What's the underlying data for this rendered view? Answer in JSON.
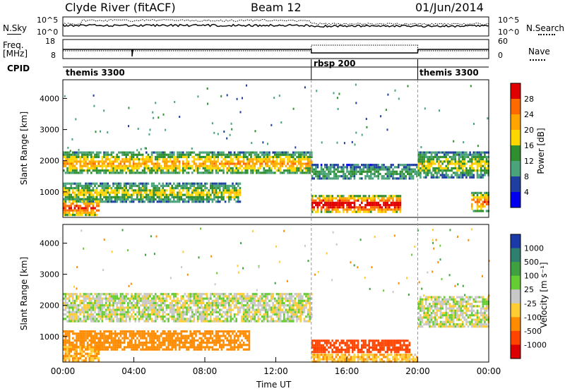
{
  "header": {
    "station": "Clyde River (fitACF)",
    "beam": "Beam 12",
    "date": "01/Jun/2014"
  },
  "noise_panel": {
    "left_label": "N.Sky",
    "right_label": "N.Search",
    "ticks_left": [
      "10^5",
      "10^0"
    ],
    "ticks_right": [
      "10^5",
      "10^0"
    ]
  },
  "freq_panel": {
    "left_label_top": "Freq.",
    "left_label_unit": "[MHz]",
    "right_label": "Nave",
    "ticks_left": [
      "18",
      "8"
    ],
    "ticks_right": [
      "60",
      "0"
    ]
  },
  "cpid": {
    "label": "CPID",
    "segments": [
      {
        "name": "themis 3300",
        "start_hour": 0,
        "end_hour": 14
      },
      {
        "name": "rbsp 200",
        "start_hour": 14,
        "end_hour": 20
      },
      {
        "name": "themis 3300",
        "start_hour": 20,
        "end_hour": 24
      }
    ]
  },
  "x_axis": {
    "label": "Time UT",
    "ticks": [
      "00:00",
      "04:00",
      "08:00",
      "12:00",
      "16:00",
      "20:00",
      "00:00"
    ]
  },
  "chart_data": [
    {
      "type": "heatmap",
      "name": "power",
      "ylabel": "Slant Range [km]",
      "yticks": [
        1000,
        2000,
        3000,
        4000
      ],
      "ylim": [
        180,
        4600
      ],
      "xlim_hours": [
        0,
        24
      ],
      "colorbar_label": "Power [dB]",
      "colorbar_ticks": [
        "28",
        "24",
        "20",
        "16",
        "12",
        "8",
        "4"
      ],
      "colorbar_colors": [
        "#e00000",
        "#ff6a00",
        "#ffa500",
        "#ffd700",
        "#2f8f2f",
        "#4aa37a",
        "#1f3fa0",
        "#0000ee"
      ],
      "bands": [
        {
          "t0": 0.0,
          "t1": 14.0,
          "r0": 1600,
          "r1": 2300,
          "level": 18
        },
        {
          "t0": 0.0,
          "t1": 10.0,
          "r0": 700,
          "r1": 1300,
          "level": 14
        },
        {
          "t0": 0.0,
          "t1": 2.0,
          "r0": 250,
          "r1": 800,
          "level": 24
        },
        {
          "t0": 14.0,
          "t1": 19.0,
          "r0": 350,
          "r1": 900,
          "level": 28
        },
        {
          "t0": 14.0,
          "t1": 20.0,
          "r0": 1400,
          "r1": 1900,
          "level": 10
        },
        {
          "t0": 20.0,
          "t1": 24.0,
          "r0": 1500,
          "r1": 2300,
          "level": 14
        },
        {
          "t0": 23.0,
          "t1": 24.0,
          "r0": 400,
          "r1": 1000,
          "level": 22
        }
      ]
    },
    {
      "type": "heatmap",
      "name": "velocity",
      "ylabel": "Slant Range [km]",
      "yticks": [
        1000,
        2000,
        3000,
        4000
      ],
      "ylim": [
        180,
        4600
      ],
      "xlim_hours": [
        0,
        24
      ],
      "colorbar_label": "Velocity [m s⁻¹]",
      "colorbar_ticks": [
        "1000",
        "500",
        "100",
        "25",
        "-25",
        "-100",
        "-500",
        "-1000"
      ],
      "colorbar_colors": [
        "#1a3aa8",
        "#2f7f6f",
        "#3fa040",
        "#66cc33",
        "#c8c8c8",
        "#ffcc33",
        "#ff8c00",
        "#ff4400",
        "#dd0000"
      ],
      "bands": [
        {
          "t0": 0.0,
          "t1": 14.0,
          "r0": 1500,
          "r1": 2400,
          "vel": 0
        },
        {
          "t0": 0.0,
          "t1": 10.5,
          "r0": 600,
          "r1": 1200,
          "vel": -200
        },
        {
          "t0": 0.0,
          "t1": 2.0,
          "r0": 200,
          "r1": 700,
          "vel": -100
        },
        {
          "t0": 14.0,
          "t1": 19.5,
          "r0": 500,
          "r1": 900,
          "vel": -600
        },
        {
          "t0": 14.0,
          "t1": 20.0,
          "r0": 200,
          "r1": 450,
          "vel": -80
        },
        {
          "t0": 20.0,
          "t1": 24.0,
          "r0": 1300,
          "r1": 2300,
          "vel": 0
        }
      ]
    }
  ]
}
